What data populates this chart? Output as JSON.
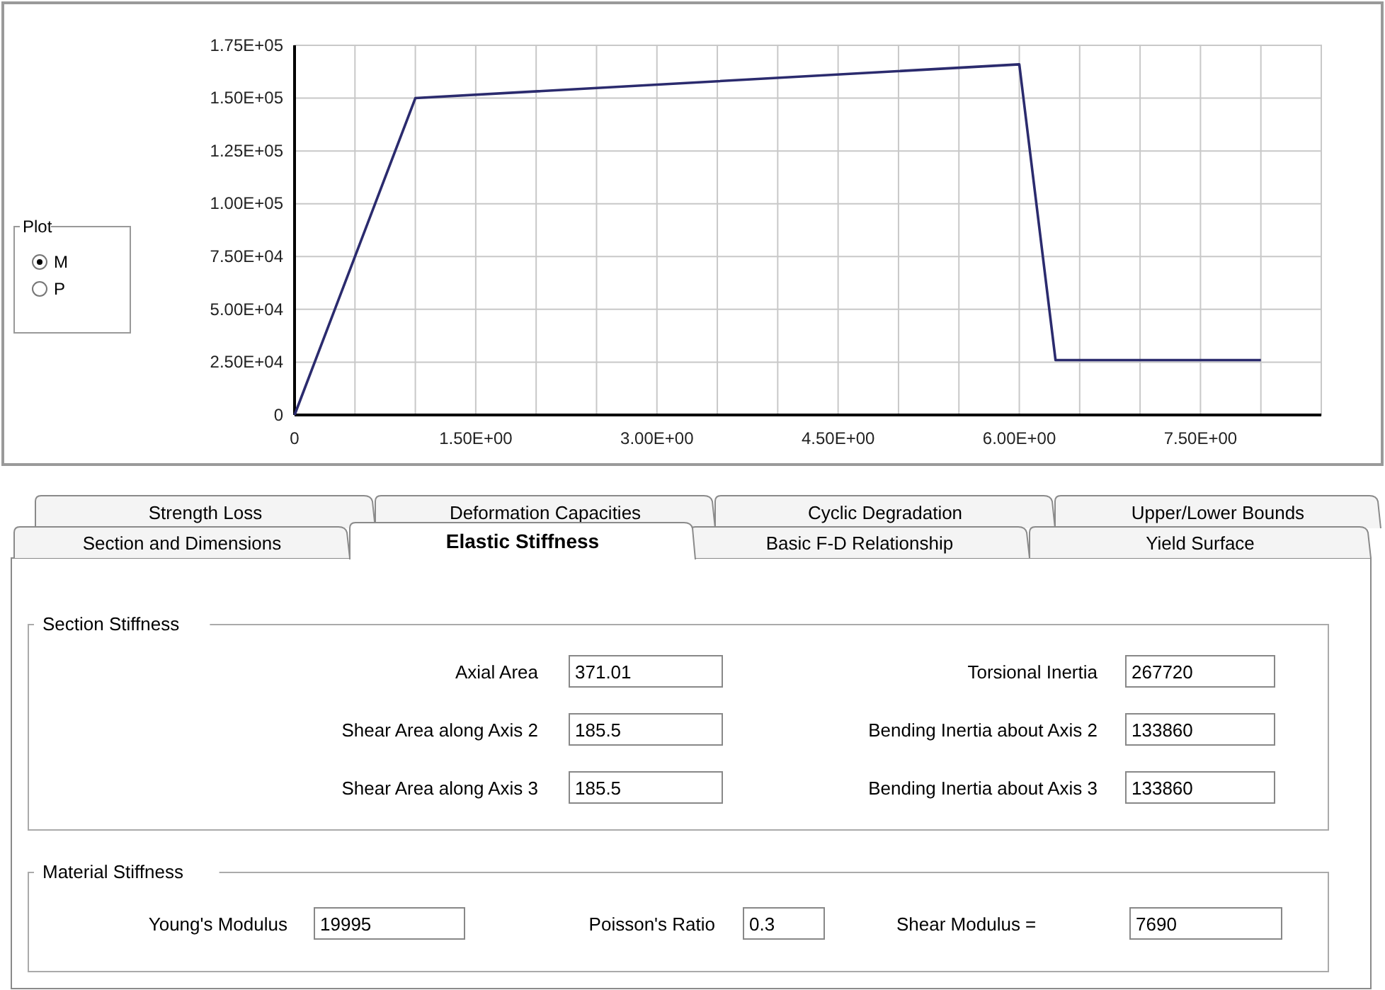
{
  "chart_data": [
    {
      "type": "line",
      "x": [
        0,
        1,
        6,
        6.3,
        8
      ],
      "values": [
        0,
        150000,
        166000,
        26000,
        26000
      ],
      "color": "#2b2b6e",
      "xlim": [
        0,
        8.5
      ],
      "xticks": [
        0,
        {
          "value": 0.5,
          "label": null
        },
        {
          "value": 1,
          "label": null
        },
        {
          "value": 1.5,
          "label": "1.50E+00"
        },
        {
          "value": 2,
          "label": null
        },
        {
          "value": 2.5,
          "label": null
        },
        {
          "value": 3,
          "label": "3.00E+00"
        },
        {
          "value": 3.5,
          "label": null
        },
        {
          "value": 4,
          "label": null
        },
        {
          "value": 4.5,
          "label": "4.50E+00"
        },
        {
          "value": 5,
          "label": null
        },
        {
          "value": 5.5,
          "label": null
        },
        {
          "value": 6,
          "label": "6.00E+00"
        },
        {
          "value": 6.5,
          "label": null
        },
        {
          "value": 7,
          "label": null
        },
        {
          "value": 7.5,
          "label": "7.50E+00"
        },
        {
          "value": 8,
          "label": null
        },
        {
          "value": 8.5,
          "label": null
        }
      ],
      "ylim": [
        0,
        175000
      ],
      "yticks": [
        0,
        {
          "value": 25000,
          "label": "2.50E+04"
        },
        {
          "value": 50000,
          "label": "5.00E+04"
        },
        {
          "value": 75000,
          "label": "7.50E+04"
        },
        {
          "value": 100000,
          "label": "1.00E+05"
        },
        {
          "value": 125000,
          "label": "1.25E+05"
        },
        {
          "value": 150000,
          "label": "1.50E+05"
        },
        {
          "value": 175000,
          "label": "1.75E+05"
        }
      ],
      "grid": true,
      "marker": "none",
      "line_style": "solid",
      "annotations": [
        "Plot",
        "M",
        "P"
      ]
    },
    {
      "type": "other",
      "annotations": [
        "Strength Loss",
        "Deformation Capacities",
        "Cyclic Degradation",
        "Upper/Lower Bounds",
        "Section and Dimensions",
        "Elastic Stiffness",
        "Basic F-D Relationship",
        "Yield Surface",
        "Section Stiffness",
        "Axial Area",
        "371.01",
        "Torsional Inertia",
        "267720",
        "Shear Area along Axis 2",
        "185.5",
        "Bending Inertia about Axis 2",
        "133860",
        "Shear Area along Axis 3",
        "185.5",
        "Bending Inertia about Axis 3",
        "133860",
        "Material Stiffness",
        "Young's Modulus",
        "19995",
        "Poisson's Ratio",
        "0.3",
        "Shear Modulus =",
        "7690"
      ]
    }
  ]
}
